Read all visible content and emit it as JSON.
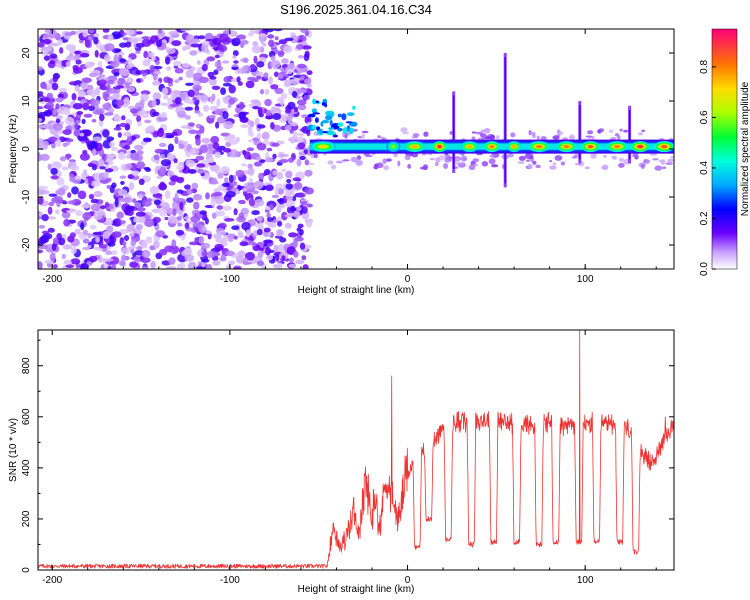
{
  "chart_data": [
    {
      "type": "heatmap",
      "title": "S196.2025.361.04.16.C34",
      "xlabel": "Height of straight line (km)",
      "ylabel": "Frequency (Hz)",
      "xlim": [
        -208,
        150
      ],
      "ylim": [
        -25,
        25
      ],
      "xticks": [
        -200,
        -100,
        0,
        100
      ],
      "yticks": [
        -20,
        -10,
        0,
        10,
        20
      ],
      "colorbar": {
        "label": "Normalized spectral amplitude",
        "range": [
          0,
          0.95
        ],
        "ticks": [
          0.0,
          0.2,
          0.4,
          0.6,
          0.8
        ],
        "tick_labels": [
          "0.0",
          "0.2",
          "0.4",
          "0.6",
          "0.8"
        ]
      },
      "noise_region_x": [
        -208,
        -55
      ],
      "signal_frequency_hz": 0.5,
      "signal_segments": [
        {
          "x0": -55,
          "x1": -40,
          "amp": 0.7
        },
        {
          "x0": -12,
          "x1": -4,
          "amp": 0.6
        },
        {
          "x0": -2,
          "x1": 10,
          "amp": 0.75
        },
        {
          "x0": 14,
          "x1": 22,
          "amp": 0.9
        },
        {
          "x0": 30,
          "x1": 40,
          "amp": 0.75
        },
        {
          "x0": 43,
          "x1": 52,
          "amp": 0.8
        },
        {
          "x0": 56,
          "x1": 64,
          "amp": 0.75
        },
        {
          "x0": 68,
          "x1": 80,
          "amp": 0.8
        },
        {
          "x0": 84,
          "x1": 95,
          "amp": 0.8
        },
        {
          "x0": 98,
          "x1": 108,
          "amp": 0.85
        },
        {
          "x0": 112,
          "x1": 124,
          "amp": 0.8
        },
        {
          "x0": 126,
          "x1": 136,
          "amp": 0.9
        },
        {
          "x0": 139,
          "x1": 150,
          "amp": 0.85
        }
      ],
      "vertical_streaks": [
        {
          "x": 26,
          "f0": -5,
          "f1": 12
        },
        {
          "x": 55,
          "f0": -8,
          "f1": 20
        },
        {
          "x": 97,
          "f0": -3,
          "f1": 10
        },
        {
          "x": 125,
          "f0": -3,
          "f1": 9
        }
      ]
    },
    {
      "type": "line",
      "title": "",
      "xlabel": "Height of straight line (km)",
      "ylabel": "SNR (10 * v/v)",
      "xlim": [
        -208,
        150
      ],
      "ylim": [
        0,
        940
      ],
      "xticks": [
        -200,
        -100,
        0,
        100
      ],
      "yticks": [
        0,
        200,
        400,
        600,
        800
      ],
      "series": [
        {
          "name": "SNR",
          "color": "#ee3333",
          "baseline": {
            "x0": -208,
            "x1": -45,
            "value": 15
          },
          "points": [
            [
              -45,
              20
            ],
            [
              -42,
              180
            ],
            [
              -38,
              90
            ],
            [
              -34,
              130
            ],
            [
              -30,
              240
            ],
            [
              -27,
              130
            ],
            [
              -24,
              350
            ],
            [
              -22,
              290
            ],
            [
              -20,
              200
            ],
            [
              -18,
              320
            ],
            [
              -16,
              140
            ],
            [
              -14,
              260
            ],
            [
              -12,
              380
            ],
            [
              -10,
              300
            ],
            [
              -8,
              260
            ],
            [
              -6,
              210
            ],
            [
              -4,
              220
            ],
            [
              -2,
              330
            ],
            [
              0,
              380
            ],
            [
              3,
              420
            ],
            [
              6,
              450
            ],
            [
              9,
              480
            ],
            [
              12,
              500
            ],
            [
              15,
              515
            ],
            [
              18,
              540
            ],
            [
              21,
              560
            ],
            [
              24,
              575
            ],
            [
              27,
              580
            ],
            [
              30,
              580
            ],
            [
              35,
              590
            ],
            [
              40,
              590
            ],
            [
              45,
              585
            ],
            [
              50,
              580
            ],
            [
              55,
              575
            ],
            [
              60,
              580
            ],
            [
              65,
              575
            ],
            [
              70,
              570
            ],
            [
              75,
              570
            ],
            [
              80,
              575
            ],
            [
              85,
              570
            ],
            [
              90,
              565
            ],
            [
              95,
              570
            ],
            [
              100,
              575
            ],
            [
              105,
              570
            ],
            [
              110,
              570
            ],
            [
              115,
              575
            ],
            [
              120,
              560
            ],
            [
              125,
              550
            ],
            [
              128,
              530
            ],
            [
              131,
              470
            ],
            [
              134,
              440
            ],
            [
              137,
              420
            ],
            [
              140,
              440
            ],
            [
              143,
              500
            ],
            [
              146,
              540
            ],
            [
              150,
              550
            ]
          ],
          "dips": [
            {
              "x": 5.5,
              "value": 90
            },
            {
              "x": 12,
              "value": 200
            },
            {
              "x": 23,
              "value": 120
            },
            {
              "x": 36,
              "value": 100
            },
            {
              "x": 48.5,
              "value": 110
            },
            {
              "x": 61.5,
              "value": 110
            },
            {
              "x": 74,
              "value": 100
            },
            {
              "x": 83.5,
              "value": 110
            },
            {
              "x": 96.5,
              "value": 110
            },
            {
              "x": 106.5,
              "value": 110
            },
            {
              "x": 119.5,
              "value": 110
            },
            {
              "x": 128.5,
              "value": 70
            }
          ],
          "spikes": [
            {
              "x": -24,
              "value": 370
            },
            {
              "x": -9,
              "value": 760
            },
            {
              "x": 97,
              "value": 940
            },
            {
              "x": 145,
              "value": 600
            }
          ]
        }
      ]
    }
  ]
}
